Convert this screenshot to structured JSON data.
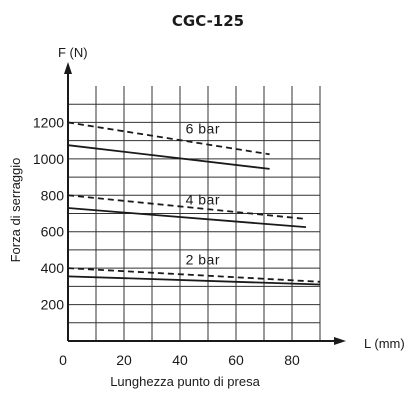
{
  "chart_data": {
    "type": "line",
    "title": "CGC-125",
    "ylabel_unit": "F (N)",
    "ylabel": "Forza di serraggio",
    "xlabel_unit": "L (mm)",
    "xlabel": "Lunghezza punto di presa",
    "origin_label": "0",
    "xlim": [
      0,
      90
    ],
    "ylim": [
      0,
      1400
    ],
    "xticks": [
      20,
      40,
      60,
      80
    ],
    "yticks": [
      200,
      400,
      600,
      800,
      1000,
      1200
    ],
    "x_gridlines": [
      0,
      10,
      20,
      30,
      40,
      50,
      60,
      70,
      80,
      90
    ],
    "y_gridlines": [
      100,
      200,
      300,
      400,
      500,
      600,
      700,
      800,
      900,
      1000,
      1100,
      1200,
      1300
    ],
    "grid": true,
    "series": [
      {
        "group": "6 bar",
        "style": "dashed",
        "x": [
          0,
          72
        ],
        "y": [
          1200,
          1025
        ]
      },
      {
        "group": "6 bar",
        "style": "solid",
        "x": [
          0,
          72
        ],
        "y": [
          1075,
          945
        ]
      },
      {
        "group": "4 bar",
        "style": "dashed",
        "x": [
          0,
          85
        ],
        "y": [
          800,
          670
        ]
      },
      {
        "group": "4 bar",
        "style": "solid",
        "x": [
          0,
          85
        ],
        "y": [
          730,
          625
        ]
      },
      {
        "group": "2 bar",
        "style": "dashed",
        "x": [
          0,
          90
        ],
        "y": [
          400,
          325
        ]
      },
      {
        "group": "2 bar",
        "style": "solid",
        "x": [
          0,
          90
        ],
        "y": [
          355,
          310
        ]
      }
    ],
    "annotations": [
      {
        "text": "6 bar",
        "x": 42,
        "y": 1140
      },
      {
        "text": "4 bar",
        "x": 42,
        "y": 750
      },
      {
        "text": "2 bar",
        "x": 42,
        "y": 420
      }
    ],
    "line_color": "#1a1a1a",
    "grid_color": "#333333"
  }
}
